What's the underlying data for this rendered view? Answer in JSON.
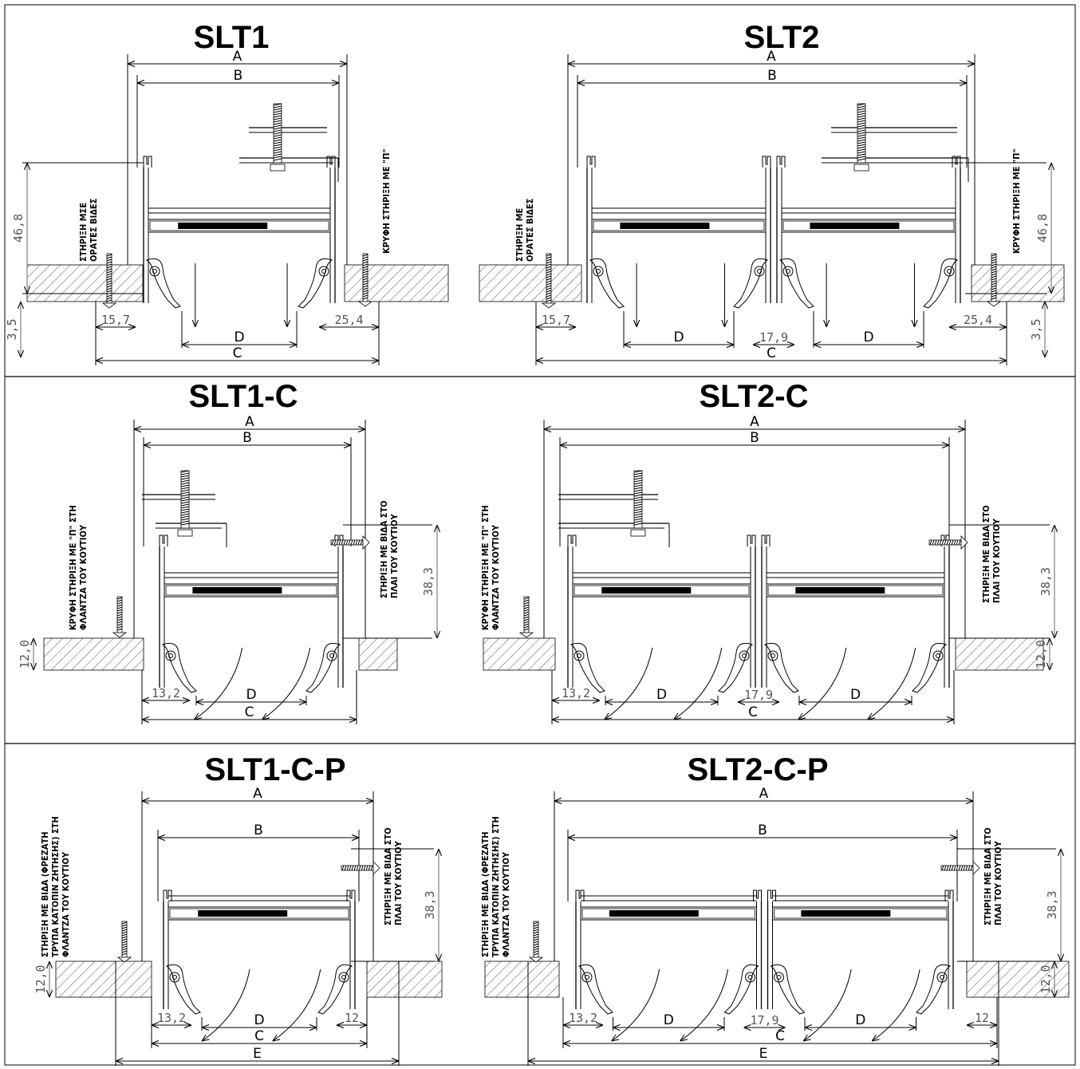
{
  "panels": [
    {
      "id": "slt1",
      "title": "SLT1",
      "slots": 1,
      "variant": "base",
      "labels": {
        "A": "A",
        "B": "B",
        "C": "C",
        "D": "D"
      },
      "dims": {
        "h": "46,8",
        "f": "3,5",
        "l": "15,7",
        "r": "25,4"
      },
      "notes": {
        "left": [
          "ΣΤΗΡΙΞΗ ΜΣΕ",
          "ΟΡΑΤΕΣ ΒΙΔΕΣ"
        ],
        "right": [
          "ΚΡΥΦΗ ΣΤΗΡΙΞΗ ΜΕ \"Π\""
        ]
      }
    },
    {
      "id": "slt2",
      "title": "SLT2",
      "slots": 2,
      "variant": "base",
      "labels": {
        "A": "A",
        "B": "B",
        "C": "C",
        "D": "D"
      },
      "dims": {
        "h": "46,8",
        "f": "3,5",
        "l": "15,7",
        "m": "17,9",
        "r": "25,4"
      },
      "notes": {
        "left": [
          "ΣΤΗΡΙΞΗ ΜΕ",
          "ΟΡΑΤΕΣ ΒΙΔΕΣ"
        ],
        "right": [
          "ΚΡΥΦΗ ΣΤΗΡΙΞΗ ΜΕ \"Π\""
        ]
      }
    },
    {
      "id": "slt1c",
      "title": "SLT1-C",
      "slots": 1,
      "variant": "c",
      "labels": {
        "A": "A",
        "B": "B",
        "C": "C",
        "D": "D"
      },
      "dims": {
        "h": "38,3",
        "f": "12,0",
        "l": "13,2"
      },
      "notes": {
        "left": [
          "ΚΡΥΦΗ ΣΤΗΡΙΞΗ ΜΕ \"Π\" ΣΤΗ",
          "ΦΛΑΝΤΖΑ ΤΟΥ ΚΟΥΤΙΟΥ"
        ],
        "right": [
          "ΣΤΗΡΙΞΗ ΜΕ ΒΙΔΑ ΣΤΟ",
          "ΠΛΑΙ ΤΟΥ ΚΟΥΤΙΟΥ"
        ]
      }
    },
    {
      "id": "slt2c",
      "title": "SLT2-C",
      "slots": 2,
      "variant": "c",
      "labels": {
        "A": "A",
        "B": "B",
        "C": "C",
        "D": "D"
      },
      "dims": {
        "h": "38,3",
        "f": "12,0",
        "l": "13,2",
        "m": "17,9"
      },
      "notes": {
        "left": [
          "ΚΡΥΦΗ ΣΤΗΡΙΞΗ ΜΕ \"Π\" ΣΤΗ",
          "ΦΛΑΝΤΖΑ ΤΟΥ ΚΟΥΤΙΟΥ"
        ],
        "right": [
          "ΣΤΗΡΙΞΗ ΜΕ ΒΙΔΑ ΣΤΟ",
          "ΠΛΑΙ ΤΟΥ ΚΟΥΤΙΟΥ"
        ]
      }
    },
    {
      "id": "slt1cp",
      "title": "SLT1-C-P",
      "slots": 1,
      "variant": "cp",
      "labels": {
        "A": "A",
        "B": "B",
        "C": "C",
        "D": "D",
        "E": "E"
      },
      "dims": {
        "h": "38,3",
        "f": "12,0",
        "l": "13,2",
        "r": "12"
      },
      "notes": {
        "left": [
          "ΣΤΗΡΙΞΗ ΜΕ ΒΙΔΑ (ΦΡΕΖΑΤΗ",
          "ΤΡΥΠΑ ΚΑΤΟΠΙΝ ΖΗΤΗΣΗΣ) ΣΤΗ",
          "ΦΛΑΝΤΖΑ ΤΟΥ ΚΟΥΤΙΟΥ"
        ],
        "right": [
          "ΣΤΗΡΙΞΗ ΜΕ ΒΙΔΑ ΣΤΟ",
          "ΠΛΑΙ ΤΟΥ ΚΟΥΤΙΟΥ"
        ]
      }
    },
    {
      "id": "slt2cp",
      "title": "SLT2-C-P",
      "slots": 2,
      "variant": "cp",
      "labels": {
        "A": "A",
        "B": "B",
        "C": "C",
        "D": "D",
        "E": "E"
      },
      "dims": {
        "h": "38,3",
        "f": "12,0",
        "l": "13,2",
        "m": "17,9",
        "r": "12"
      },
      "notes": {
        "left": [
          "ΣΤΗΡΙΞΗ ΜΕ ΒΙΔΑ (ΦΡΕΖΑΤΗ",
          "ΤΡΥΠΑ ΚΑΤΟΠΙΝ ΖΗΤΗΣΗΣ) ΣΤΗ",
          "ΦΛΑΝΤΖΑ ΤΟΥ ΚΟΥΤΙΟΥ"
        ],
        "right": [
          "ΣΤΗΡΙΞΗ ΜΕ ΒΙΔΑ ΣΤΟ",
          "ΠΛΑΙ ΤΟΥ ΚΟΥΤΙΟΥ"
        ]
      }
    }
  ]
}
